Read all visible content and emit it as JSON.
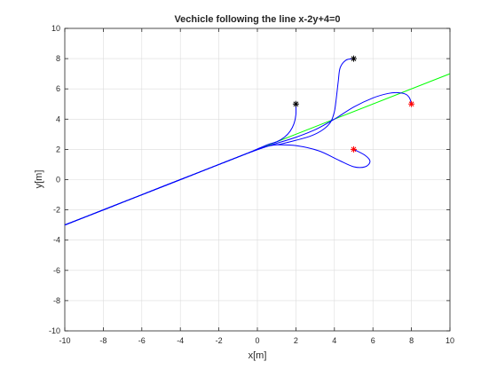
{
  "chart_data": {
    "type": "line",
    "title": "Vechicle following the line x-2y+4=0",
    "xlabel": "x[m]",
    "ylabel": "y[m]",
    "xlim": [
      -10,
      10
    ],
    "ylim": [
      -10,
      10
    ],
    "xticks": [
      -10,
      -8,
      -6,
      -4,
      -2,
      0,
      2,
      4,
      6,
      8,
      10
    ],
    "yticks": [
      -10,
      -8,
      -6,
      -4,
      -2,
      0,
      2,
      4,
      6,
      8,
      10
    ],
    "grid": true,
    "reference_line": {
      "equation": "x-2y+4=0",
      "color": "#00ff00",
      "x": [
        -10,
        10
      ],
      "y": [
        -3,
        7
      ]
    },
    "series": [
      {
        "color": "#0000ff",
        "x": [
          5,
          4.6,
          4.3,
          4.2,
          4.1,
          4.0,
          3.8,
          3.4,
          2.8,
          2.0,
          1.2,
          0.5,
          -0.5,
          -2,
          -4,
          -6,
          -8,
          -10
        ],
        "y": [
          8,
          7.9,
          7.4,
          6.5,
          5.4,
          4.5,
          3.8,
          3.3,
          2.9,
          2.6,
          2.35,
          2.2,
          1.75,
          1.0,
          0.0,
          -1.0,
          -2.0,
          -3.0
        ]
      },
      {
        "color": "#0000ff",
        "x": [
          2,
          2.0,
          1.9,
          1.7,
          1.4,
          1.0,
          0.5,
          -0.5,
          -2,
          -4,
          -6,
          -8,
          -10
        ],
        "y": [
          5,
          4.3,
          3.7,
          3.2,
          2.8,
          2.5,
          2.3,
          1.75,
          1.0,
          0.0,
          -1.0,
          -2.0,
          -3.0
        ]
      },
      {
        "color": "#0000ff",
        "x": [
          8,
          7.9,
          7.7,
          7.3,
          6.8,
          6.0,
          5.0,
          4.0,
          3.0,
          2.0,
          1.0,
          0.5,
          -0.5,
          -2,
          -4,
          -6,
          -8,
          -10
        ],
        "y": [
          5,
          5.4,
          5.65,
          5.75,
          5.7,
          5.4,
          4.8,
          4.0,
          3.3,
          2.8,
          2.4,
          2.2,
          1.75,
          1.0,
          0.0,
          -1.0,
          -2.0,
          -3.0
        ]
      },
      {
        "color": "#0000ff",
        "x": [
          5,
          5.6,
          5.85,
          5.6,
          5.0,
          4.2,
          3.2,
          2.0,
          1.0,
          0.5,
          -0.5,
          -2,
          -4,
          -6,
          -8,
          -10
        ],
        "y": [
          2,
          1.6,
          1.2,
          0.85,
          0.85,
          1.3,
          1.9,
          2.25,
          2.3,
          2.2,
          1.75,
          1.0,
          0.0,
          -1.0,
          -2.0,
          -3.0
        ]
      }
    ],
    "start_markers": [
      {
        "x": 5,
        "y": 8,
        "color": "#000000",
        "symbol": "*"
      },
      {
        "x": 2,
        "y": 5,
        "color": "#000000",
        "symbol": "*"
      },
      {
        "x": 8,
        "y": 5,
        "color": "#ff0000",
        "symbol": "*"
      },
      {
        "x": 5,
        "y": 2,
        "color": "#ff0000",
        "symbol": "*"
      }
    ]
  }
}
